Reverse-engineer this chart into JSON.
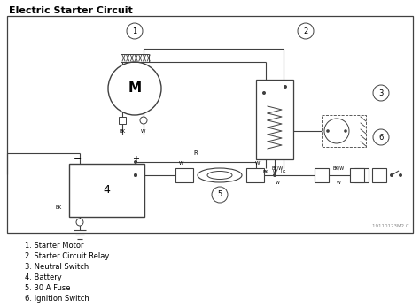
{
  "title": "Electric Starter Circuit",
  "background_color": "#ffffff",
  "line_color": "#404040",
  "legend_items": [
    "1. Starter Motor",
    "2. Starter Circuit Relay",
    "3. Neutral Switch",
    "4. Battery",
    "5. 30 A Fuse",
    "6. Ignition Switch"
  ],
  "watermark": "19110123M2 C",
  "figsize": [
    4.74,
    3.48
  ],
  "dpi": 100
}
